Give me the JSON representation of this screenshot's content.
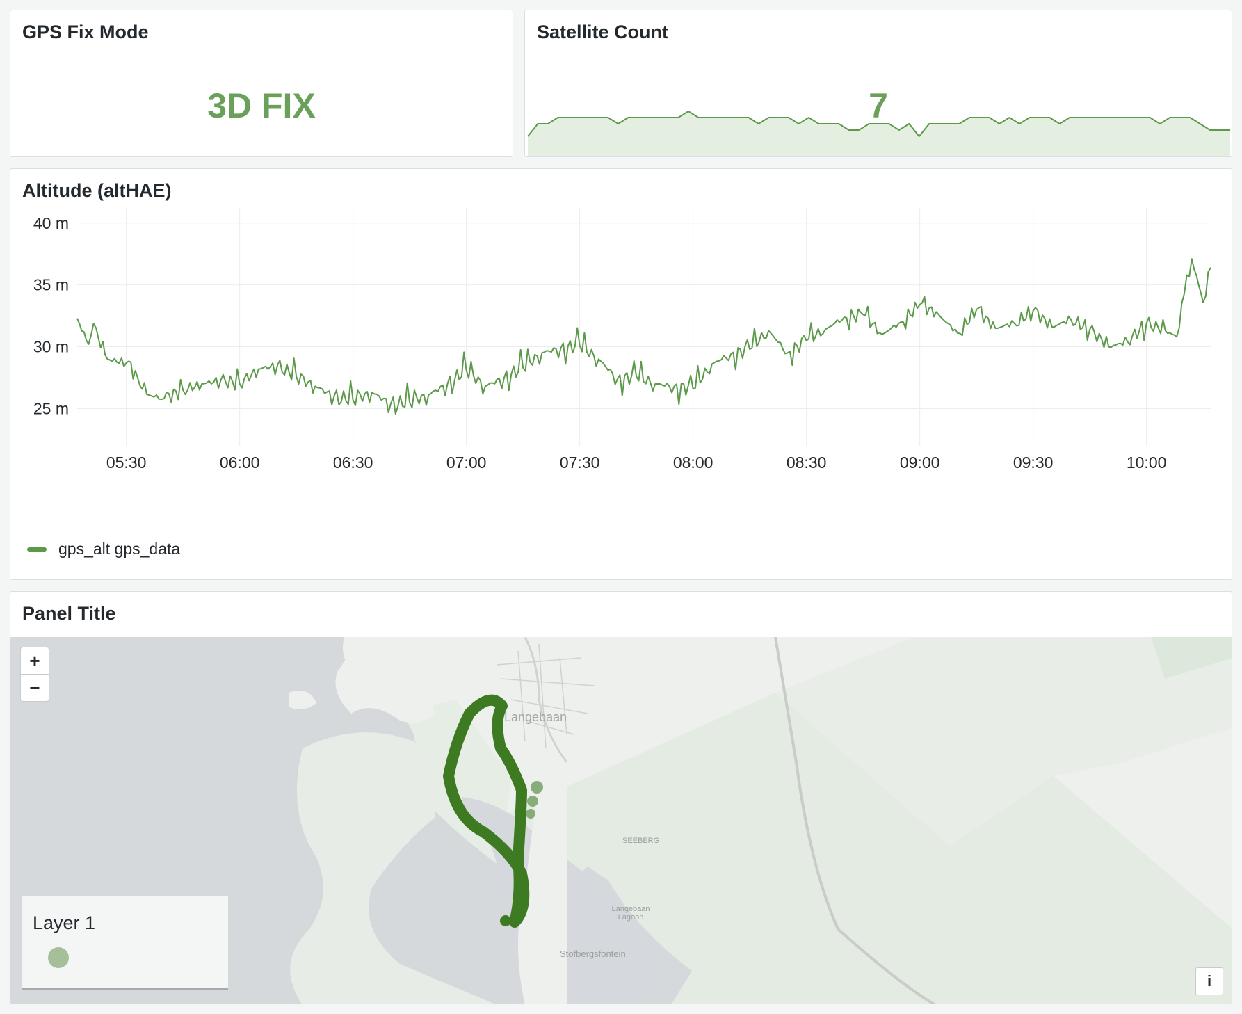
{
  "panels": {
    "fix": {
      "title": "GPS Fix Mode",
      "value": "3D FIX",
      "value_color": "#6aa05a"
    },
    "satellites": {
      "title": "Satellite Count",
      "value": "7",
      "sparkline": [
        3,
        5,
        5,
        6,
        6,
        6,
        6,
        6,
        6,
        5,
        6,
        6,
        6,
        6,
        6,
        6,
        7,
        6,
        6,
        6,
        6,
        6,
        6,
        5,
        6,
        6,
        6,
        5,
        6,
        5,
        5,
        5,
        4,
        4,
        5,
        5,
        5,
        4,
        5,
        3,
        5,
        5,
        5,
        5,
        6,
        6,
        6,
        5,
        6,
        5,
        6,
        6,
        6,
        5,
        6,
        6,
        6,
        6,
        6,
        6,
        6,
        6,
        6,
        5,
        6,
        6,
        6,
        5,
        4,
        4,
        4
      ]
    },
    "altitude": {
      "title": "Altitude (altHAE)",
      "legend": "gps_alt gps_data",
      "series_color": "#5c9a4a"
    },
    "map": {
      "title": "Panel Title",
      "zoom_in": "+",
      "zoom_out": "−",
      "layer_name": "Layer 1",
      "info": "i",
      "place_labels": [
        "Langebaan",
        "SEEBERG",
        "Langebaan Lagoon",
        "Stofbergsfontein"
      ],
      "track_color": "#3d7a22"
    }
  },
  "chart_data": {
    "type": "line",
    "title": "Altitude (altHAE)",
    "xlabel": "",
    "ylabel": "",
    "x_ticks": [
      "05:30",
      "06:00",
      "06:30",
      "07:00",
      "07:30",
      "08:00",
      "08:30",
      "09:00",
      "09:30",
      "10:00"
    ],
    "y_ticks": [
      "25 m",
      "30 m",
      "35 m",
      "40 m"
    ],
    "ylim": [
      23,
      41
    ],
    "xlim_minutes": [
      317,
      617
    ],
    "grid": true,
    "legend": "bottom-left",
    "series": [
      {
        "name": "gps_alt gps_data",
        "x": [
          "05:17",
          "05:20",
          "05:22",
          "05:25",
          "05:30",
          "05:33",
          "05:36",
          "05:40",
          "05:45",
          "05:50",
          "05:55",
          "06:00",
          "06:05",
          "06:10",
          "06:15",
          "06:20",
          "06:25",
          "06:30",
          "06:35",
          "06:40",
          "06:45",
          "06:50",
          "06:55",
          "07:00",
          "07:05",
          "07:10",
          "07:15",
          "07:20",
          "07:25",
          "07:30",
          "07:35",
          "07:40",
          "07:45",
          "07:50",
          "07:55",
          "08:00",
          "08:05",
          "08:10",
          "08:15",
          "08:20",
          "08:25",
          "08:30",
          "08:35",
          "08:40",
          "08:45",
          "08:50",
          "08:55",
          "09:00",
          "09:05",
          "09:10",
          "09:15",
          "09:20",
          "09:25",
          "09:30",
          "09:35",
          "09:40",
          "09:45",
          "09:50",
          "09:55",
          "10:00",
          "10:05",
          "10:08",
          "10:10",
          "10:12",
          "10:15",
          "10:17"
        ],
        "y": [
          32.3,
          30.2,
          31.5,
          29.0,
          28.7,
          27.5,
          26.1,
          25.8,
          26.5,
          27.0,
          27.3,
          27.0,
          28.2,
          28.5,
          27.6,
          26.8,
          26.0,
          25.7,
          26.3,
          25.4,
          25.5,
          26.1,
          27.0,
          28.1,
          26.8,
          27.5,
          28.3,
          29.5,
          29.9,
          30.1,
          29.0,
          27.4,
          27.6,
          27.0,
          26.8,
          26.6,
          28.6,
          29.4,
          29.8,
          31.3,
          29.5,
          30.5,
          31.4,
          32.4,
          32.6,
          31.0,
          32.0,
          33.4,
          32.6,
          31.1,
          33.0,
          31.5,
          31.9,
          32.9,
          31.6,
          32.2,
          31.4,
          30.0,
          30.4,
          31.9,
          31.3,
          30.8,
          34.3,
          37.1,
          33.6,
          36.4
        ]
      }
    ]
  }
}
